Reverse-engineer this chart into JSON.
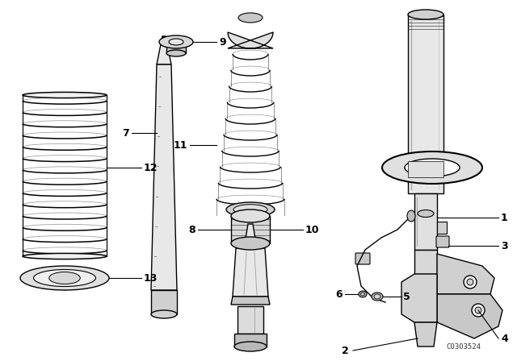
{
  "bg_color": "#ffffff",
  "fig_width": 6.4,
  "fig_height": 4.48,
  "dpi": 100,
  "watermark": "C0303524",
  "line_color": "#000000",
  "label_fontsize": 8
}
